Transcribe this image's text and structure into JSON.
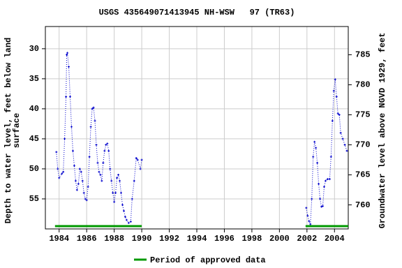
{
  "chart_data": {
    "type": "line",
    "title": "USGS 435649071413945 NH-WSW   97 (TR63)",
    "y_label": [
      "Depth to water level, feet below land",
      "surface"
    ],
    "y2_label": "Groundwater level above NGVD 1929, feet",
    "x": [
      1983.8,
      1983.9,
      1984.0,
      1984.2,
      1984.3,
      1984.4,
      1984.5,
      1984.55,
      1984.6,
      1984.7,
      1984.8,
      1984.9,
      1985.0,
      1985.1,
      1985.2,
      1985.3,
      1985.4,
      1985.5,
      1985.6,
      1985.7,
      1985.8,
      1985.9,
      1986.0,
      1986.1,
      1986.2,
      1986.3,
      1986.4,
      1986.5,
      1986.6,
      1986.7,
      1986.8,
      1986.9,
      1987.0,
      1987.1,
      1987.2,
      1987.3,
      1987.4,
      1987.5,
      1987.6,
      1987.7,
      1987.8,
      1987.9,
      1988.0,
      1988.1,
      1988.2,
      1988.3,
      1988.4,
      1988.5,
      1988.6,
      1988.7,
      1988.8,
      1988.9,
      1989.05,
      1989.2,
      1989.3,
      1989.45,
      1989.6,
      1989.7,
      1989.9,
      1990.0,
      null,
      2001.95,
      2002.05,
      2002.15,
      2002.25,
      2002.35,
      2002.45,
      2002.55,
      2002.65,
      2002.75,
      2002.85,
      2002.95,
      2003.05,
      2003.15,
      2003.25,
      2003.35,
      2003.5,
      2003.65,
      2003.75,
      2003.85,
      2003.95,
      2004.05,
      2004.15,
      2004.25,
      2004.35,
      2004.45,
      2004.6,
      2004.75,
      2004.9
    ],
    "series": [
      {
        "color": "#0000cc",
        "values": [
          47.2,
          50,
          51.5,
          50.8,
          50.5,
          45,
          38,
          31,
          30.7,
          33,
          38,
          43,
          47,
          49.5,
          52,
          53.5,
          52.5,
          50,
          50.5,
          52,
          54,
          55,
          55.2,
          53,
          48,
          43,
          40,
          39.8,
          42,
          46,
          49,
          50.5,
          51,
          52,
          49,
          47,
          46,
          45.8,
          47,
          50,
          52,
          54,
          55.5,
          54,
          51.5,
          51,
          52,
          54,
          56,
          57,
          58,
          58.5,
          59,
          58.8,
          55,
          52,
          48.2,
          48.5,
          50,
          48.5,
          null,
          56.5,
          57.8,
          58.7,
          59.2,
          55,
          48,
          45.5,
          46.5,
          49,
          52.5,
          55,
          56.3,
          56.2,
          53,
          52,
          51.7,
          51.7,
          48,
          42,
          37,
          35.1,
          38,
          40.8,
          41,
          44,
          45,
          46,
          47
        ]
      }
    ],
    "approved_periods": [
      [
        1983.7,
        1990.0
      ],
      [
        2001.9,
        2005.0
      ]
    ],
    "approved_color": "#009900",
    "legend": "Period of approved data",
    "xlim": [
      1983.0,
      2005.0
    ],
    "xticks": [
      1984,
      1986,
      1988,
      1990,
      1992,
      1994,
      1996,
      1998,
      2000,
      2002,
      2004
    ],
    "ylim": [
      26.3,
      60
    ],
    "y_inverted": true,
    "yticks": [
      30,
      35,
      40,
      45,
      50,
      55
    ],
    "y2lim": [
      789.7,
      756
    ],
    "y2ticks": [
      760,
      765,
      770,
      775,
      780,
      785
    ],
    "grid": true
  }
}
